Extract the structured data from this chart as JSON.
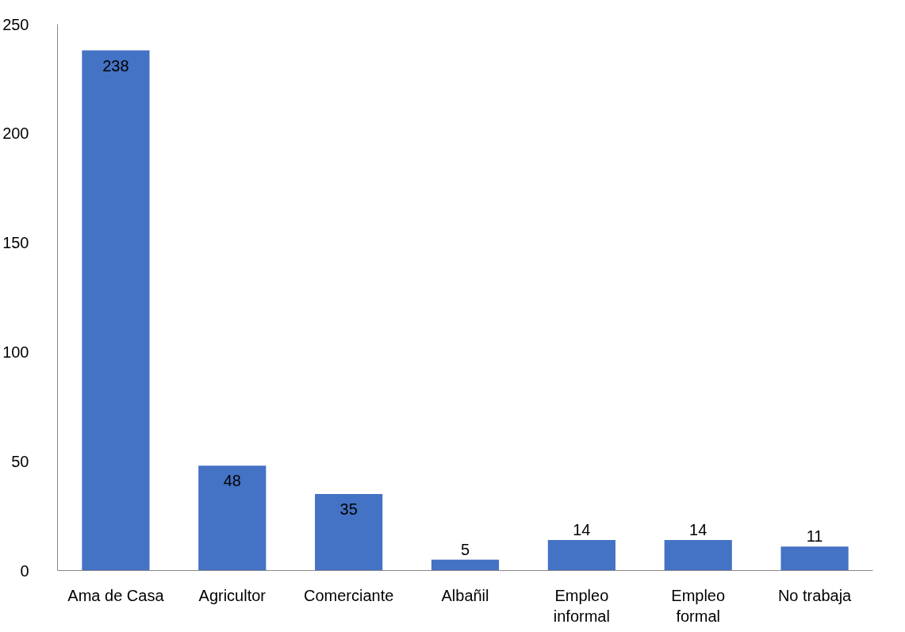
{
  "chart_data": {
    "type": "bar",
    "categories": [
      "Ama de Casa",
      "Agricultor",
      "Comerciante",
      "Albañil",
      "Empleo informal",
      "Empleo formal",
      "No trabaja"
    ],
    "values": [
      238,
      48,
      35,
      5,
      14,
      14,
      11
    ],
    "color": "#4472c4",
    "ylim": [
      0,
      250
    ],
    "yticks": [
      0,
      50,
      100,
      150,
      200,
      250
    ],
    "data_labels": true,
    "grid": false
  }
}
